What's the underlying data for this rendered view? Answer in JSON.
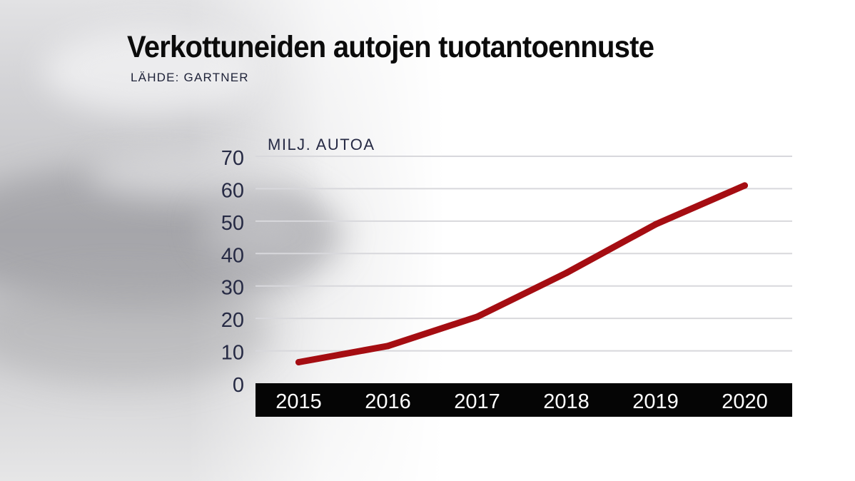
{
  "title": "Verkottuneiden autojen tuotantoennuste",
  "source": "LÄHDE: GARTNER",
  "chart_data": {
    "type": "line",
    "title": "Verkottuneiden autojen tuotantoennuste",
    "subtitle": "LÄHDE: GARTNER",
    "ylabel": "MILJ. AUTOA",
    "xlabel": "",
    "categories": [
      "2015",
      "2016",
      "2017",
      "2018",
      "2019",
      "2020"
    ],
    "series": [
      {
        "values": [
          6.5,
          11.5,
          20.5,
          34,
          49,
          61
        ]
      }
    ],
    "yticks": [
      0,
      10,
      20,
      30,
      40,
      50,
      60,
      70
    ],
    "ylim": [
      0,
      70
    ],
    "grid": true,
    "legend": "none",
    "colors": {
      "line": "#a50d12",
      "grid": "#d8d8dc",
      "axis_bar": "#050505",
      "axis_text": "#ffffff",
      "tick_text": "#262a44",
      "title_text": "#0b0b0b"
    }
  }
}
